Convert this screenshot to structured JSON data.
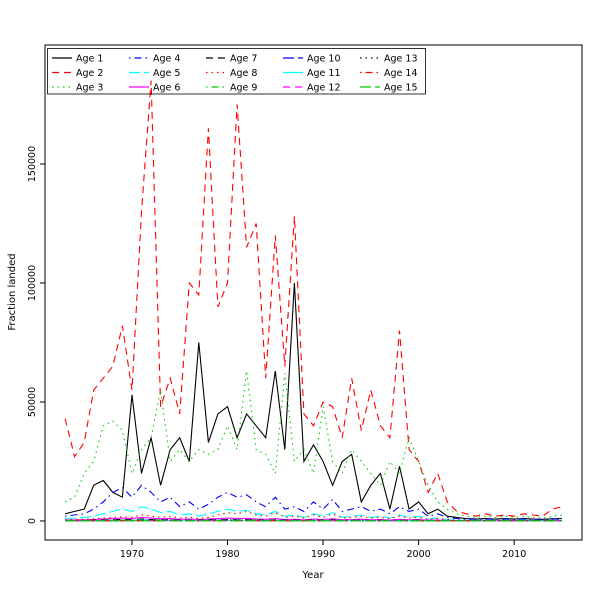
{
  "chart_data": {
    "type": "line",
    "xlabel": "Year",
    "ylabel": "Fraction landed",
    "xlim": [
      1960.9,
      2017.1
    ],
    "ylim": [
      -8000,
      200000
    ],
    "x_ticks": [
      1970,
      1980,
      1990,
      2000,
      2010
    ],
    "y_ticks": [
      0,
      50000,
      100000,
      150000
    ],
    "grid": false,
    "legend_position": "top-left",
    "legend_columns": 5,
    "legend_rows": 3,
    "x": [
      1963,
      1964,
      1965,
      1966,
      1967,
      1968,
      1969,
      1970,
      1971,
      1972,
      1973,
      1974,
      1975,
      1976,
      1977,
      1978,
      1979,
      1980,
      1981,
      1982,
      1983,
      1984,
      1985,
      1986,
      1987,
      1988,
      1989,
      1990,
      1991,
      1992,
      1993,
      1994,
      1995,
      1996,
      1997,
      1998,
      1999,
      2000,
      2001,
      2002,
      2003,
      2004,
      2005,
      2006,
      2007,
      2008,
      2009,
      2010,
      2011,
      2012,
      2013,
      2014,
      2015
    ],
    "series": [
      {
        "name": "Age 1",
        "color": "#000000",
        "linetype": "solid",
        "values": [
          3000,
          4000,
          5000,
          15000,
          17000,
          12000,
          10000,
          53000,
          20000,
          35000,
          15000,
          30000,
          35000,
          25000,
          75000,
          33000,
          45000,
          48000,
          35000,
          45000,
          40000,
          35000,
          63000,
          30000,
          100000,
          25000,
          32000,
          25000,
          15000,
          25000,
          28000,
          8000,
          15000,
          20000,
          5000,
          23000,
          5000,
          8000,
          3000,
          5000,
          2000,
          1500,
          1000,
          800,
          1000,
          800,
          1000,
          800,
          1000,
          800,
          700,
          900,
          1000
        ]
      },
      {
        "name": "Age 2",
        "color": "#ff0000",
        "linetype": "dashed",
        "values": [
          43000,
          27000,
          33000,
          55000,
          60000,
          65000,
          82000,
          55000,
          130000,
          185000,
          48000,
          60000,
          45000,
          100000,
          95000,
          165000,
          90000,
          100000,
          175000,
          115000,
          125000,
          60000,
          120000,
          65000,
          128000,
          45000,
          40000,
          50000,
          48000,
          35000,
          60000,
          38000,
          55000,
          40000,
          35000,
          80000,
          30000,
          25000,
          12000,
          20000,
          8000,
          4000,
          3000,
          2000,
          3000,
          2000,
          2500,
          2000,
          3000,
          2500,
          2000,
          5000,
          6000
        ]
      },
      {
        "name": "Age 3",
        "color": "#00cc00",
        "linetype": "dotted",
        "values": [
          8000,
          10000,
          20000,
          25000,
          40000,
          42000,
          38000,
          20000,
          30000,
          35000,
          55000,
          25000,
          30000,
          25000,
          30000,
          28000,
          30000,
          40000,
          30000,
          63000,
          30000,
          28000,
          20000,
          62000,
          25000,
          30000,
          20000,
          48000,
          25000,
          20000,
          30000,
          25000,
          20000,
          15000,
          25000,
          20000,
          35000,
          25000,
          15000,
          8000,
          5000,
          3000,
          2000,
          1500,
          2000,
          1500,
          2000,
          1500,
          2000,
          1500,
          1200,
          2000,
          2500
        ]
      },
      {
        "name": "Age 4",
        "color": "#0000ff",
        "linetype": "dotdash",
        "values": [
          2000,
          2500,
          3000,
          5000,
          8000,
          12000,
          14000,
          10000,
          15000,
          12000,
          8000,
          10000,
          6000,
          8000,
          5000,
          7000,
          10000,
          12000,
          10000,
          11000,
          8000,
          6000,
          10000,
          5000,
          6000,
          4000,
          8000,
          5000,
          9000,
          4000,
          5000,
          6000,
          4000,
          5000,
          3000,
          6000,
          4000,
          5000,
          2000,
          3000,
          1500,
          1000,
          800,
          600,
          800,
          600,
          800,
          600,
          800,
          600,
          500,
          800,
          1000
        ]
      },
      {
        "name": "Age 5",
        "color": "#00ffff",
        "linetype": "longdash",
        "values": [
          1000,
          1200,
          1500,
          2000,
          3000,
          4000,
          5000,
          4000,
          6000,
          5000,
          3500,
          4000,
          2500,
          3000,
          2000,
          3000,
          4000,
          5000,
          4000,
          4500,
          3000,
          2500,
          4000,
          2000,
          2500,
          1500,
          3000,
          2000,
          3500,
          1500,
          2000,
          2500,
          1500,
          2000,
          1200,
          2500,
          1500,
          2000,
          800,
          1200,
          600,
          400,
          300,
          250,
          300,
          250,
          300,
          250,
          300,
          250,
          200,
          300,
          400
        ]
      },
      {
        "name": "Age 6",
        "color": "#ff00ff",
        "linetype": "solid",
        "values": [
          400,
          450,
          500,
          600,
          800,
          1000,
          1200,
          1000,
          1500,
          1200,
          900,
          1000,
          700,
          800,
          600,
          800,
          1000,
          1200,
          1000,
          1100,
          800,
          700,
          1000,
          600,
          700,
          500,
          800,
          600,
          900,
          500,
          600,
          700,
          500,
          600,
          400,
          700,
          500,
          600,
          300,
          400,
          250,
          200,
          150,
          120,
          150,
          120,
          150,
          120,
          150,
          120,
          100,
          150,
          200
        ]
      },
      {
        "name": "Age 7",
        "color": "#000000",
        "linetype": "dashed",
        "values": [
          200,
          220,
          250,
          300,
          400,
          500,
          600,
          500,
          800,
          600,
          450,
          500,
          350,
          400,
          300,
          400,
          500,
          600,
          500,
          550,
          400,
          350,
          500,
          300,
          350,
          250,
          400,
          300,
          450,
          250,
          300,
          350,
          250,
          300,
          200,
          350,
          250,
          300,
          150,
          200,
          120,
          100,
          80,
          60,
          80,
          60,
          80,
          60,
          80,
          60,
          50,
          80,
          100
        ]
      },
      {
        "name": "Age 8",
        "color": "#ff0000",
        "linetype": "dotted",
        "values": [
          500,
          600,
          700,
          900,
          1200,
          1500,
          1800,
          1500,
          2500,
          2000,
          1500,
          1800,
          1200,
          1500,
          1000,
          1500,
          2500,
          3500,
          3000,
          4000,
          2500,
          2000,
          3500,
          1500,
          2000,
          1200,
          2500,
          1500,
          3000,
          1200,
          1500,
          2000,
          1200,
          1500,
          1000,
          2000,
          1200,
          1500,
          800,
          1000,
          600,
          400,
          300,
          250,
          300,
          250,
          300,
          250,
          300,
          250,
          200,
          400,
          500
        ]
      },
      {
        "name": "Age 9",
        "color": "#00cc00",
        "linetype": "dotdash",
        "values": [
          150,
          160,
          180,
          220,
          300,
          350,
          400,
          350,
          550,
          450,
          350,
          400,
          280,
          320,
          240,
          320,
          400,
          450,
          400,
          430,
          320,
          280,
          400,
          240,
          280,
          200,
          320,
          240,
          360,
          200,
          240,
          280,
          200,
          240,
          160,
          280,
          200,
          240,
          120,
          160,
          100,
          80,
          60,
          50,
          60,
          50,
          60,
          50,
          60,
          50,
          40,
          60,
          80
        ]
      },
      {
        "name": "Age 10",
        "color": "#0000ff",
        "linetype": "longdash",
        "values": [
          100,
          110,
          120,
          150,
          200,
          240,
          280,
          240,
          380,
          300,
          240,
          280,
          190,
          220,
          160,
          220,
          280,
          310,
          280,
          300,
          220,
          190,
          280,
          160,
          190,
          140,
          220,
          160,
          250,
          140,
          160,
          190,
          140,
          160,
          110,
          190,
          140,
          160,
          80,
          110,
          70,
          55,
          40,
          35,
          40,
          35,
          40,
          35,
          40,
          35,
          30,
          40,
          55
        ]
      },
      {
        "name": "Age 11",
        "color": "#00ffff",
        "linetype": "solid",
        "values": [
          70,
          75,
          85,
          100,
          140,
          170,
          195,
          170,
          265,
          210,
          170,
          195,
          130,
          155,
          110,
          155,
          195,
          220,
          195,
          210,
          155,
          130,
          195,
          110,
          130,
          100,
          155,
          110,
          175,
          100,
          110,
          130,
          100,
          110,
          75,
          130,
          100,
          110,
          55,
          75,
          50,
          40,
          30,
          25,
          30,
          25,
          30,
          25,
          30,
          25,
          20,
          30,
          40
        ]
      },
      {
        "name": "Age 12",
        "color": "#ff00ff",
        "linetype": "dashed",
        "values": [
          50,
          55,
          60,
          70,
          95,
          120,
          135,
          120,
          185,
          150,
          120,
          135,
          95,
          110,
          80,
          110,
          135,
          155,
          135,
          150,
          110,
          95,
          135,
          80,
          95,
          70,
          110,
          80,
          120,
          70,
          80,
          95,
          70,
          80,
          55,
          95,
          70,
          80,
          40,
          55,
          35,
          28,
          20,
          18,
          20,
          18,
          20,
          18,
          20,
          18,
          15,
          20,
          28
        ]
      },
      {
        "name": "Age 13",
        "color": "#000000",
        "linetype": "dotted",
        "values": [
          35,
          38,
          42,
          50,
          65,
          85,
          95,
          85,
          130,
          105,
          85,
          95,
          65,
          75,
          55,
          75,
          95,
          110,
          95,
          105,
          75,
          65,
          95,
          55,
          65,
          50,
          75,
          55,
          85,
          50,
          55,
          65,
          50,
          55,
          38,
          65,
          50,
          55,
          28,
          38,
          25,
          20,
          15,
          12,
          15,
          12,
          15,
          12,
          15,
          12,
          10,
          15,
          20
        ]
      },
      {
        "name": "Age 14",
        "color": "#ff0000",
        "linetype": "dotdash",
        "values": [
          25,
          27,
          30,
          35,
          45,
          60,
          68,
          60,
          90,
          75,
          60,
          68,
          45,
          52,
          38,
          52,
          68,
          78,
          68,
          75,
          52,
          45,
          68,
          38,
          45,
          35,
          52,
          38,
          60,
          35,
          38,
          45,
          35,
          38,
          27,
          45,
          35,
          38,
          20,
          27,
          18,
          14,
          10,
          8,
          10,
          8,
          10,
          8,
          10,
          8,
          7,
          10,
          14
        ]
      },
      {
        "name": "Age 15",
        "color": "#00cc00",
        "linetype": "longdash",
        "values": [
          18,
          19,
          21,
          25,
          32,
          42,
          48,
          42,
          63,
          52,
          42,
          48,
          32,
          37,
          27,
          37,
          48,
          55,
          48,
          52,
          37,
          32,
          48,
          27,
          32,
          25,
          37,
          27,
          42,
          25,
          27,
          32,
          25,
          27,
          19,
          32,
          25,
          27,
          14,
          19,
          12,
          10,
          7,
          6,
          7,
          6,
          7,
          6,
          7,
          6,
          5,
          7,
          10
        ]
      }
    ]
  }
}
